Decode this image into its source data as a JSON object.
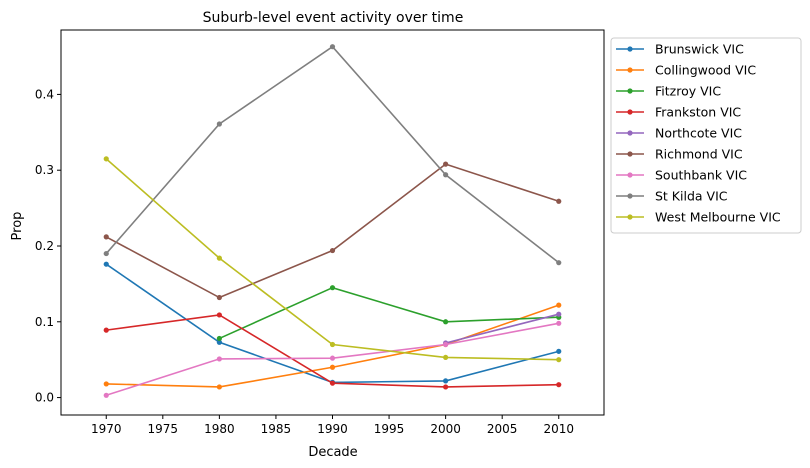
{
  "chart_data": {
    "type": "line",
    "title": "Suburb-level event activity over time",
    "xlabel": "Decade",
    "ylabel": "Prop",
    "xlim": [
      1966,
      2014
    ],
    "ylim": [
      -0.023,
      0.485
    ],
    "xticks": [
      1970,
      1975,
      1980,
      1985,
      1990,
      1995,
      2000,
      2005,
      2010
    ],
    "yticks": [
      0.0,
      0.1,
      0.2,
      0.3,
      0.4
    ],
    "grid": false,
    "legend_position": "outside-right",
    "series": [
      {
        "name": "Brunswick VIC",
        "color": "#1f77b4",
        "points": [
          [
            1970,
            0.176
          ],
          [
            1980,
            0.073
          ],
          [
            1990,
            0.02
          ],
          [
            2000,
            0.022
          ],
          [
            2010,
            0.061
          ]
        ]
      },
      {
        "name": "Collingwood VIC",
        "color": "#ff7f0e",
        "points": [
          [
            1970,
            0.018
          ],
          [
            1980,
            0.014
          ],
          [
            1990,
            0.04
          ],
          [
            2000,
            0.07
          ],
          [
            2010,
            0.122
          ]
        ]
      },
      {
        "name": "Fitzroy VIC",
        "color": "#2ca02c",
        "points": [
          [
            1980,
            0.078
          ],
          [
            1990,
            0.145
          ],
          [
            2000,
            0.1
          ],
          [
            2010,
            0.106
          ]
        ]
      },
      {
        "name": "Frankston VIC",
        "color": "#d62728",
        "points": [
          [
            1970,
            0.089
          ],
          [
            1980,
            0.109
          ],
          [
            1990,
            0.019
          ],
          [
            2000,
            0.014
          ],
          [
            2010,
            0.017
          ]
        ]
      },
      {
        "name": "Northcote VIC",
        "color": "#9467bd",
        "points": [
          [
            2000,
            0.072
          ],
          [
            2010,
            0.11
          ]
        ]
      },
      {
        "name": "Richmond VIC",
        "color": "#8c564b",
        "points": [
          [
            1970,
            0.212
          ],
          [
            1980,
            0.132
          ],
          [
            1990,
            0.194
          ],
          [
            2000,
            0.308
          ],
          [
            2010,
            0.259
          ]
        ]
      },
      {
        "name": "Southbank VIC",
        "color": "#e377c2",
        "points": [
          [
            1970,
            0.003
          ],
          [
            1980,
            0.051
          ],
          [
            1990,
            0.052
          ],
          [
            2000,
            0.07
          ],
          [
            2010,
            0.098
          ]
        ]
      },
      {
        "name": "St Kilda VIC",
        "color": "#7f7f7f",
        "points": [
          [
            1970,
            0.19
          ],
          [
            1980,
            0.361
          ],
          [
            1990,
            0.463
          ],
          [
            2000,
            0.294
          ],
          [
            2010,
            0.178
          ]
        ]
      },
      {
        "name": "West Melbourne VIC",
        "color": "#bcbd22",
        "points": [
          [
            1970,
            0.315
          ],
          [
            1980,
            0.184
          ],
          [
            1990,
            0.07
          ],
          [
            2000,
            0.053
          ],
          [
            2010,
            0.05
          ]
        ]
      }
    ]
  }
}
